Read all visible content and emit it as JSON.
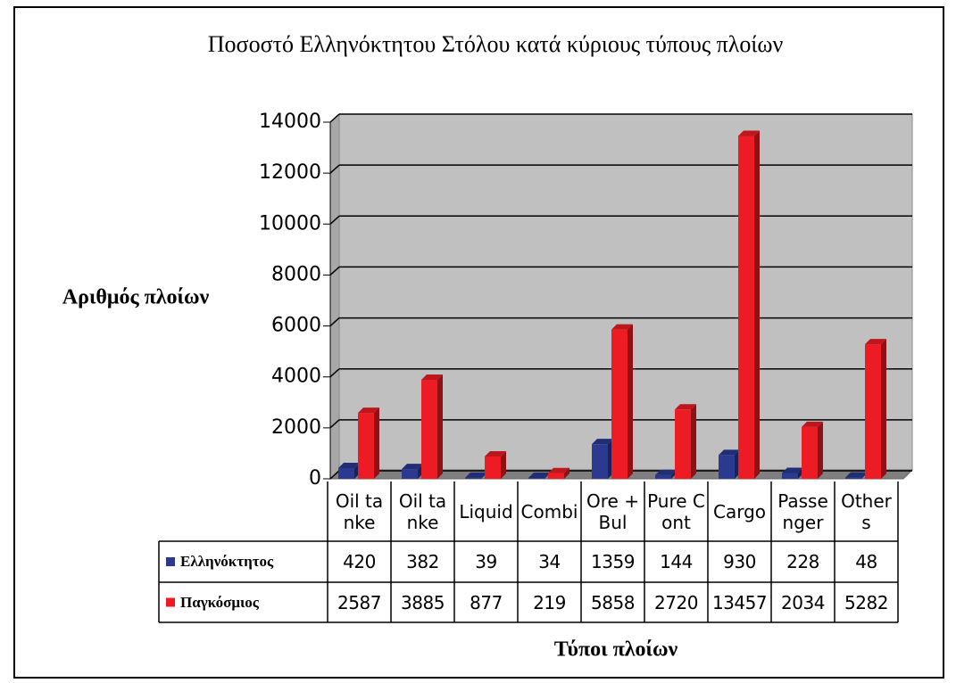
{
  "chart_data": {
    "type": "bar",
    "title": "Ποσοστό Ελληνόκτητου Στόλου κατά κύριους τύπους πλοίων",
    "y_label": "Αριθμός πλοίων",
    "x_label": "Τύποι πλοίων",
    "categories": [
      "Oil tanke",
      "Oil tanke",
      "Liquid",
      "Combi",
      "Ore + Bul",
      "Pure Cont",
      "Cargo",
      "Passenger",
      "Others"
    ],
    "series": [
      {
        "name": "Ελληνόκτητος",
        "color": "#2b3990",
        "values": [
          420,
          382,
          39,
          34,
          1359,
          144,
          930,
          228,
          48
        ]
      },
      {
        "name": "Παγκόσμιος",
        "color": "#ed1c24",
        "values": [
          2587,
          3885,
          877,
          219,
          5858,
          2720,
          13457,
          2034,
          5282
        ]
      }
    ],
    "ylim": [
      0,
      14000
    ],
    "yticks": [
      0,
      2000,
      4000,
      6000,
      8000,
      10000,
      12000,
      14000
    ],
    "grid": true
  }
}
